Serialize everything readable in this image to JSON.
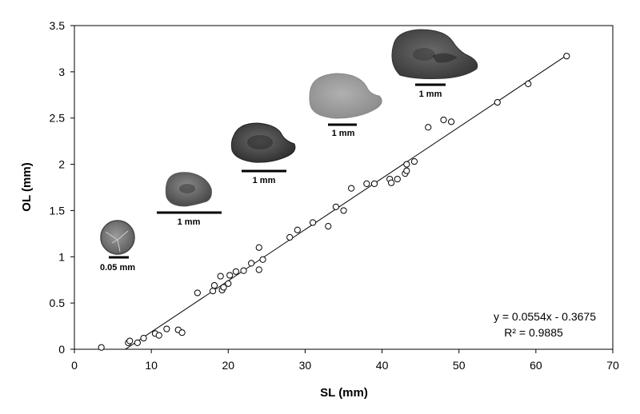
{
  "chart_data": {
    "type": "scatter",
    "title": "",
    "xlabel": "SL (mm)",
    "ylabel": "OL (mm)",
    "xlim": [
      0,
      70
    ],
    "ylim": [
      0,
      3.5
    ],
    "xticks": [
      0,
      10,
      20,
      30,
      40,
      50,
      60,
      70
    ],
    "yticks": [
      0,
      0.5,
      1,
      1.5,
      2,
      2.5,
      3,
      3.5
    ],
    "xtick_labels": [
      "0",
      "10",
      "20",
      "30",
      "40",
      "50",
      "60",
      "70"
    ],
    "ytick_labels": [
      "0",
      "0.5",
      "1",
      "1.5",
      "2",
      "2.5",
      "3",
      "3.5"
    ],
    "grid": false,
    "marker": "open-circle",
    "points": [
      [
        3.5,
        0.02
      ],
      [
        7.0,
        0.07
      ],
      [
        7.2,
        0.09
      ],
      [
        8.2,
        0.07
      ],
      [
        9.0,
        0.12
      ],
      [
        10.5,
        0.17
      ],
      [
        11.0,
        0.15
      ],
      [
        12.0,
        0.22
      ],
      [
        13.5,
        0.21
      ],
      [
        14.0,
        0.18
      ],
      [
        16.0,
        0.61
      ],
      [
        18.0,
        0.63
      ],
      [
        18.2,
        0.69
      ],
      [
        19.0,
        0.79
      ],
      [
        19.2,
        0.64
      ],
      [
        19.4,
        0.67
      ],
      [
        20.0,
        0.71
      ],
      [
        20.2,
        0.8
      ],
      [
        21.0,
        0.84
      ],
      [
        22.0,
        0.85
      ],
      [
        23.0,
        0.93
      ],
      [
        24.0,
        1.1
      ],
      [
        24.0,
        0.86
      ],
      [
        24.5,
        0.97
      ],
      [
        28.0,
        1.21
      ],
      [
        29.0,
        1.29
      ],
      [
        31.0,
        1.37
      ],
      [
        33.0,
        1.33
      ],
      [
        34.0,
        1.54
      ],
      [
        35.0,
        1.5
      ],
      [
        36.0,
        1.74
      ],
      [
        38.0,
        1.79
      ],
      [
        39.0,
        1.79
      ],
      [
        41.0,
        1.84
      ],
      [
        41.2,
        1.8
      ],
      [
        42.0,
        1.84
      ],
      [
        43.0,
        1.9
      ],
      [
        43.2,
        1.93
      ],
      [
        43.2,
        2.0
      ],
      [
        44.2,
        2.03
      ],
      [
        46.0,
        2.4
      ],
      [
        48.0,
        2.48
      ],
      [
        49.0,
        2.46
      ],
      [
        55.0,
        2.67
      ],
      [
        59.0,
        2.87
      ],
      [
        64.0,
        3.17
      ]
    ],
    "trendline": {
      "slope": 0.0554,
      "intercept": -0.3675,
      "x_range": [
        6.6,
        64.3
      ]
    },
    "annotations": {
      "equation": "y = 0.0554x - 0.3675",
      "r_squared": "R² = 0.9885"
    },
    "otolith_scale_labels": [
      "0.05 mm",
      "1 mm",
      "1 mm",
      "1 mm",
      "1 mm"
    ]
  }
}
